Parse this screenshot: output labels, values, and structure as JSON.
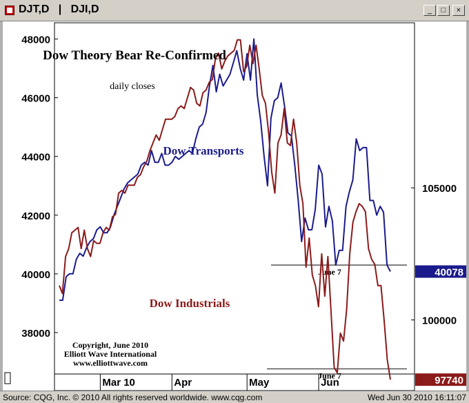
{
  "window": {
    "title": "DJT,D   |   DJI,D",
    "buttons": {
      "minimize": "_",
      "maximize": "□",
      "close": "×"
    }
  },
  "status": {
    "left": "Source: CQG, Inc. © 2010 All rights reserved worldwide. www.cqg.com",
    "right": "Wed Jun 30 2010 16:11:07"
  },
  "colors": {
    "transports": "#1a1a8c",
    "industrials": "#8b1a1a",
    "background": "#ffffff"
  },
  "chart_data": {
    "type": "line",
    "title": "Dow Theory Bear Re-Confirmed",
    "subtitle": "daily closes",
    "copyright": [
      "Copyright, June 2010",
      "Elliott Wave International",
      "www.elliottwave.com"
    ],
    "x_labels": [
      "Mar 10",
      "Apr",
      "May",
      "Jun"
    ],
    "series": [
      {
        "name": "Dow Transports",
        "axis": "left",
        "ylim": [
          36000,
          48600
        ],
        "yticks": [
          38000,
          40000,
          42000,
          44000,
          46000,
          48000
        ],
        "last_value": "40078",
        "reference_label": "June 7",
        "reference_value": 40300,
        "values": [
          39100,
          39100,
          39900,
          40000,
          40000,
          40500,
          40700,
          40600,
          40900,
          41100,
          41200,
          41500,
          41600,
          41400,
          41400,
          41600,
          42000,
          42300,
          42600,
          42900,
          43100,
          43200,
          43300,
          43400,
          43700,
          43800,
          43700,
          44200,
          43800,
          43800,
          44100,
          43700,
          43700,
          43800,
          44000,
          43900,
          44000,
          44100,
          44200,
          44100,
          44600,
          45000,
          45100,
          45500,
          46400,
          47100,
          46200,
          46800,
          46400,
          46600,
          46800,
          47200,
          47600,
          47000,
          46600,
          47500,
          46600,
          48000,
          46100,
          45200,
          44000,
          43000,
          45300,
          45900,
          46000,
          46500,
          45700,
          44800,
          44700,
          43700,
          42500,
          41100,
          41900,
          41500,
          41500,
          42200,
          43700,
          43400,
          41600,
          42300,
          41800,
          40300,
          40800,
          40800,
          42300,
          42800,
          43200,
          44600,
          44200,
          44300,
          44300,
          42500,
          42500,
          42000,
          42300,
          42100,
          40300,
          40078
        ]
      },
      {
        "name": "Dow Industrials",
        "axis": "right",
        "ylim": [
          97300,
          111300
        ],
        "yticks": [
          100000,
          105000
        ],
        "last_value": "97740",
        "reference_label": "June 7",
        "reference_value": 98150,
        "values": [
          101300,
          101000,
          102400,
          102700,
          103300,
          103400,
          103500,
          102700,
          103400,
          102700,
          102400,
          103000,
          102900,
          102900,
          103300,
          103500,
          103400,
          103900,
          104000,
          104800,
          104900,
          104800,
          105100,
          105100,
          105100,
          105400,
          105500,
          105800,
          106000,
          106400,
          106700,
          107000,
          106800,
          107200,
          107600,
          107600,
          107600,
          107700,
          108000,
          108100,
          108000,
          108400,
          108800,
          108700,
          108200,
          108100,
          108600,
          108700,
          109000,
          109100,
          109900,
          110100,
          109500,
          109800,
          110000,
          110100,
          110200,
          110600,
          110600,
          109400,
          109600,
          110400,
          109700,
          110400,
          109500,
          108500,
          108200,
          107100,
          105600,
          104800,
          106700,
          107000,
          108000,
          106700,
          106600,
          107600,
          106700,
          105100,
          104400,
          102000,
          103100,
          101700,
          101300,
          100500,
          102500,
          100900,
          102400,
          100300,
          98200,
          98000,
          99500,
          99200,
          100400,
          102500,
          103700,
          104100,
          104400,
          104300,
          104100,
          102700,
          102300,
          102100,
          101300,
          101300,
          100000,
          98500,
          97740
        ]
      }
    ]
  }
}
